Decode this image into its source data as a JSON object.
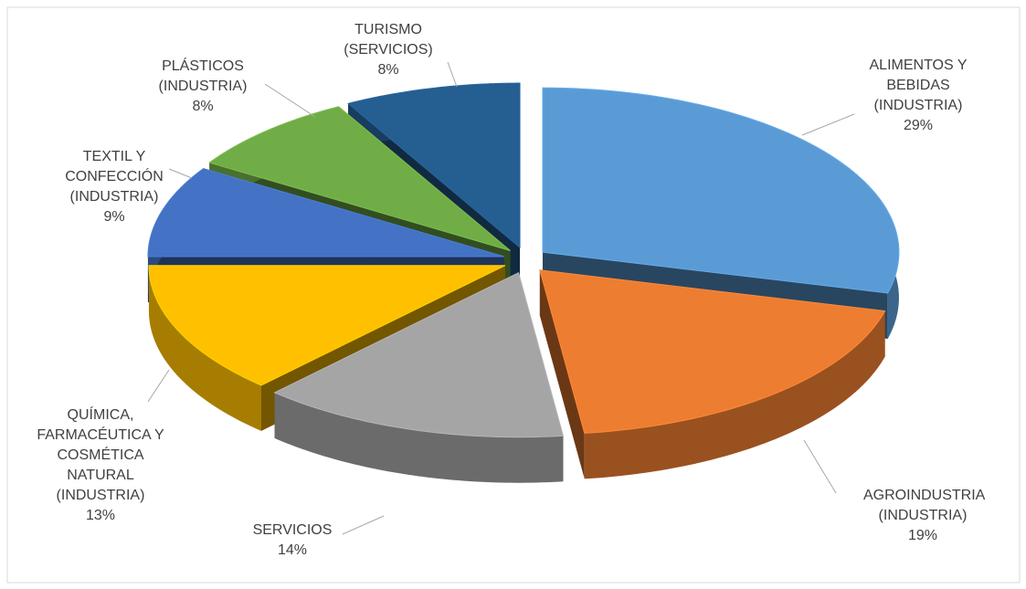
{
  "chart_data": {
    "type": "pie",
    "categories": [
      "ALIMENTOS Y BEBIDAS (INDUSTRIA)",
      "AGROINDUSTRIA (INDUSTRIA)",
      "SERVICIOS",
      "QUÍMICA, FARMACÉUTICA Y COSMÉTICA NATURAL (INDUSTRIA)",
      "TEXTIL Y CONFECCIÓN (INDUSTRIA)",
      "PLÁSTICOS (INDUSTRIA)",
      "TURISMO (SERVICIOS)"
    ],
    "values": [
      29,
      19,
      14,
      13,
      9,
      8,
      8
    ],
    "value_labels": [
      "29%",
      "19%",
      "14%",
      "13%",
      "9%",
      "8%",
      "8%"
    ],
    "colors": [
      "#5b9bd5",
      "#ed7d31",
      "#a5a5a5",
      "#ffc000",
      "#4472c4",
      "#70ad47",
      "#255e91"
    ]
  }
}
